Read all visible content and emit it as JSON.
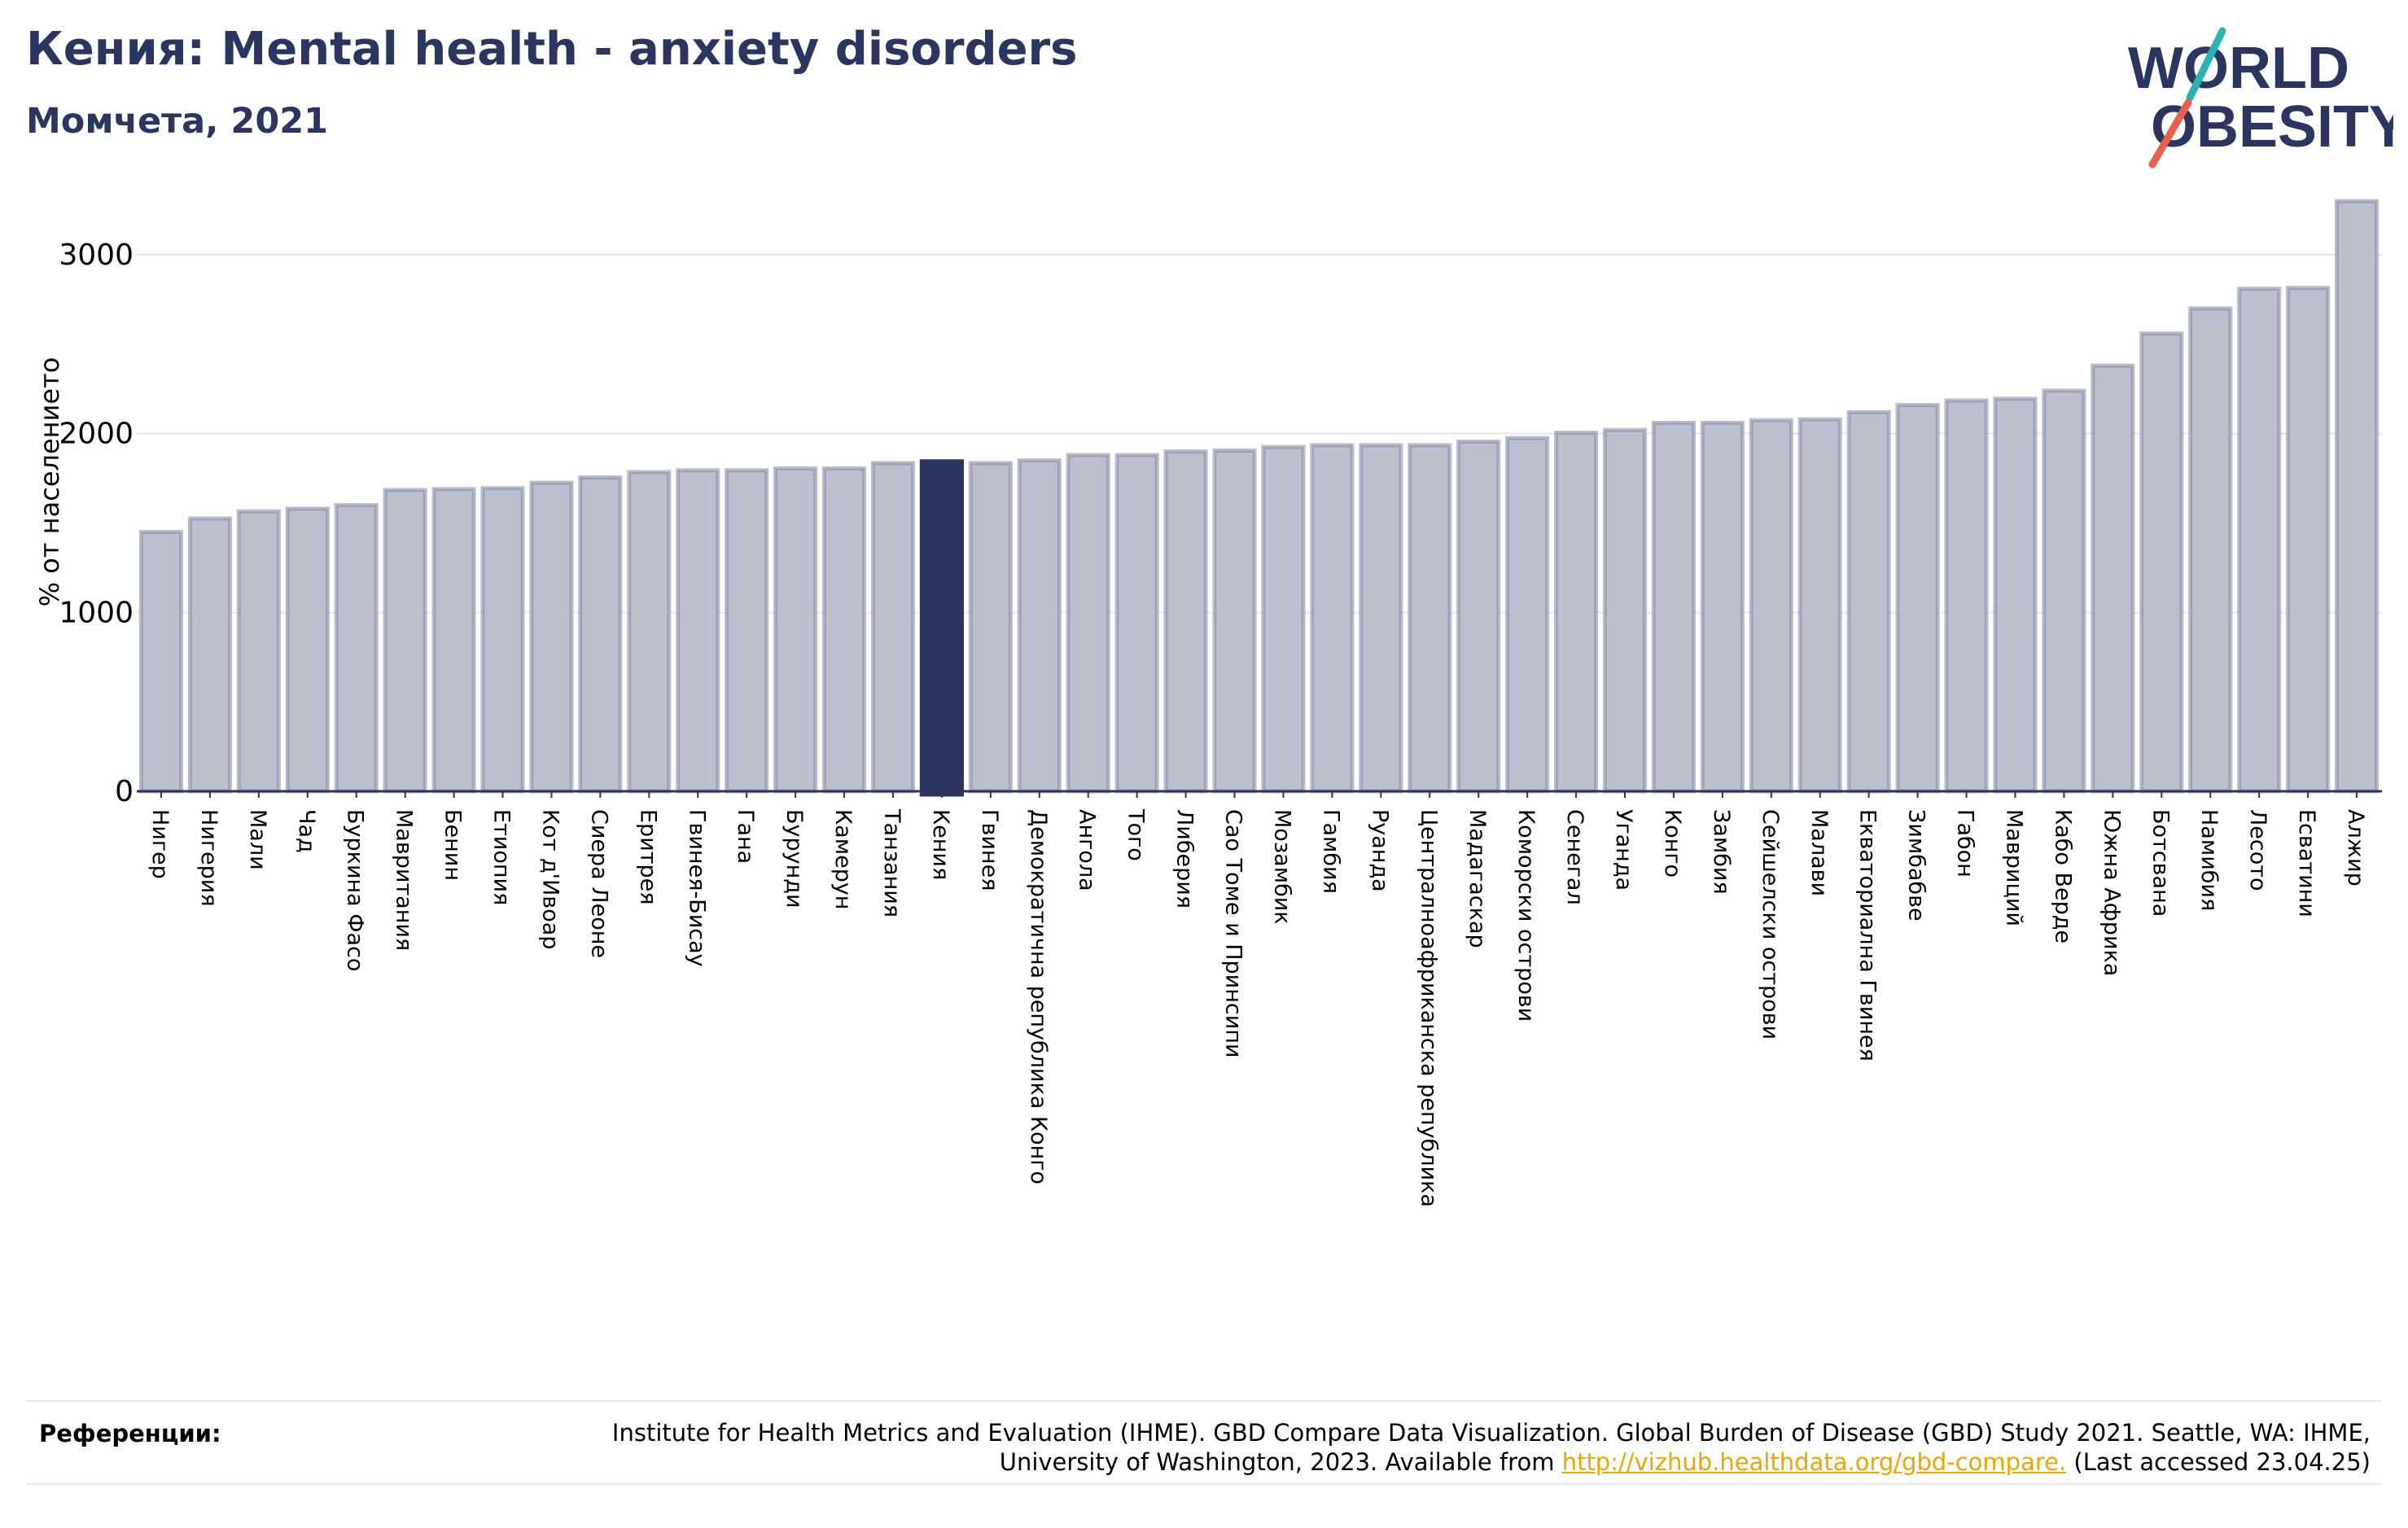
{
  "header": {
    "title": "Кения: Mental health - anxiety disorders",
    "subtitle": "Момчета, 2021"
  },
  "logo": {
    "line1": "WORLD",
    "line2": "OBESITY"
  },
  "colors": {
    "highlight": "#2a3560",
    "bar_fill": "#bcbfcc",
    "bar_stroke": "#8a90aa",
    "title": "#2a3560",
    "logo_teal": "#2bb3b1",
    "logo_red": "#e8604c",
    "link": "#f0a500"
  },
  "chart_data": {
    "type": "bar",
    "title": "Кения: Mental health - anxiety disorders",
    "subtitle": "Момчета, 2021",
    "ylabel": "% от населението",
    "xlabel": "",
    "ylim": [
      0,
      3300
    ],
    "yticks": [
      0,
      1000,
      2000,
      3000
    ],
    "grid": true,
    "highlight": "Кения",
    "categories": [
      "Нигер",
      "Нигерия",
      "Мали",
      "Чад",
      "Буркина Фасо",
      "Мавритания",
      "Бенин",
      "Етиопия",
      "Кот д'Ивоар",
      "Сиера Леоне",
      "Еритрея",
      "Гвинея-Бисау",
      "Гана",
      "Бурунди",
      "Камерун",
      "Танзания",
      "Кения",
      "Гвинея",
      "Демократична република Конго",
      "Ангола",
      "Того",
      "Либерия",
      "Сао Томе и Принсипи",
      "Мозамбик",
      "Гамбия",
      "Руанда",
      "Централноафриканска република",
      "Мадагаскар",
      "Коморски острови",
      "Сенегал",
      "Уганда",
      "Конго",
      "Замбия",
      "Сейшелски острови",
      "Малави",
      "Екваториална Гвинея",
      "Зимбабве",
      "Габон",
      "Мавриций",
      "Кабо Верде",
      "Южна Африка",
      "Ботсвана",
      "Намибия",
      "Лесото",
      "Есватини",
      "Алжир"
    ],
    "values": [
      1450,
      1525,
      1565,
      1580,
      1600,
      1685,
      1690,
      1695,
      1725,
      1755,
      1785,
      1795,
      1795,
      1805,
      1805,
      1835,
      1845,
      1835,
      1850,
      1880,
      1880,
      1900,
      1905,
      1925,
      1935,
      1935,
      1935,
      1955,
      1975,
      2005,
      2020,
      2060,
      2060,
      2075,
      2080,
      2120,
      2160,
      2185,
      2195,
      2240,
      2380,
      2560,
      2700,
      2810,
      2815,
      3300
    ]
  },
  "references": {
    "label": "Референции:",
    "text": "Institute for Health Metrics and Evaluation (IHME). GBD Compare Data Visualization. Global Burden of Disease (GBD) Study 2021. Seattle, WA: IHME, University of Washington, 2023. Available from",
    "link": "http://vizhub.healthdata.org/gbd-compare.",
    "suffix": "(Last accessed 23.04.25)"
  }
}
